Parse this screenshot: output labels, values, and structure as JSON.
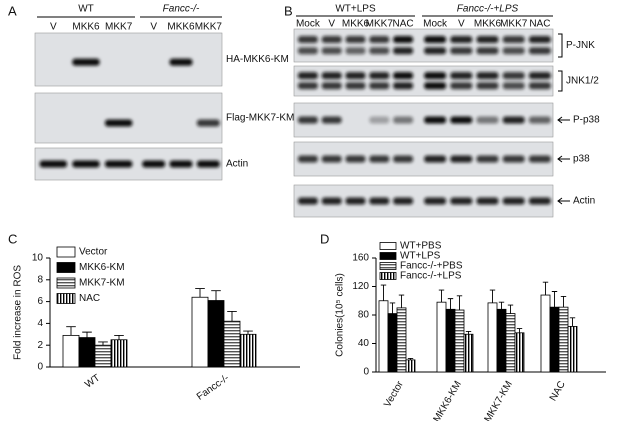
{
  "panels": {
    "A": {
      "label": "A",
      "groups": [
        {
          "name": "WT",
          "lanes": [
            "V",
            "MKK6",
            "MKK7"
          ]
        },
        {
          "name": "Fancc-/-",
          "lanes": [
            "V",
            "MKK6",
            "MKK7"
          ]
        }
      ],
      "rows": [
        "HA-MKK6-KM",
        "Flag-MKK7-KM",
        "Actin"
      ]
    },
    "B": {
      "label": "B",
      "groups": [
        {
          "name": "WT+LPS",
          "lanes": [
            "Mock",
            "V",
            "MKK6",
            "MKK7",
            "NAC"
          ]
        },
        {
          "name": "Fancc-/-+LPS",
          "lanes": [
            "Mock",
            "V",
            "MKK6",
            "MKK7",
            "NAC"
          ]
        }
      ],
      "rows": [
        "P-JNK",
        "JNK1/2",
        "P-p38",
        "p38",
        "Actin"
      ]
    }
  },
  "chart_data": [
    {
      "type": "bar",
      "panel_label": "C",
      "ylabel": "Fold increase in ROS",
      "categories": [
        "WT",
        "Fancc-/-"
      ],
      "series": [
        {
          "name": "Vector",
          "color": "#ffffff",
          "pattern": null,
          "values": [
            2.9,
            6.4
          ],
          "errors": [
            0.8,
            0.8
          ]
        },
        {
          "name": "MKK6-KM",
          "color": "#000000",
          "pattern": null,
          "values": [
            2.7,
            6.1
          ],
          "errors": [
            0.5,
            0.9
          ]
        },
        {
          "name": "MKK7-KM",
          "color": "#555555",
          "pattern": "horizontal",
          "values": [
            2.0,
            4.2
          ],
          "errors": [
            0.3,
            0.9
          ]
        },
        {
          "name": "NAC",
          "color": "#000000",
          "pattern": "vertical",
          "values": [
            2.5,
            3.0
          ],
          "errors": [
            0.4,
            0.3
          ]
        }
      ],
      "ylim": [
        0,
        10
      ],
      "yticks": [
        0,
        2,
        4,
        6,
        8,
        10
      ],
      "legend": "upper left"
    },
    {
      "type": "bar",
      "panel_label": "D",
      "ylabel": "Colonies(10⁵ cells)",
      "categories": [
        "Vector",
        "MKK6-KM",
        "MKK7-KM",
        "NAC"
      ],
      "series": [
        {
          "name": "WT+PBS",
          "color": "#ffffff",
          "pattern": null,
          "values": [
            100,
            98,
            97,
            108
          ],
          "errors": [
            22,
            17,
            18,
            18
          ]
        },
        {
          "name": "WT+LPS",
          "color": "#000000",
          "pattern": null,
          "values": [
            82,
            88,
            88,
            91
          ],
          "errors": [
            15,
            15,
            10,
            22
          ]
        },
        {
          "name": "Fancc-/-+PBS",
          "color": "#555555",
          "pattern": "horizontal",
          "values": [
            90,
            87,
            82,
            91
          ],
          "errors": [
            18,
            20,
            12,
            15
          ]
        },
        {
          "name": "Fancc-/-+LPS",
          "color": "#000000",
          "pattern": "vertical",
          "values": [
            17,
            53,
            55,
            64
          ],
          "errors": [
            2,
            4,
            6,
            12
          ]
        }
      ],
      "ylim": [
        0,
        160
      ],
      "yticks": [
        0,
        40,
        80,
        120,
        160
      ],
      "legend": "upper left"
    }
  ]
}
